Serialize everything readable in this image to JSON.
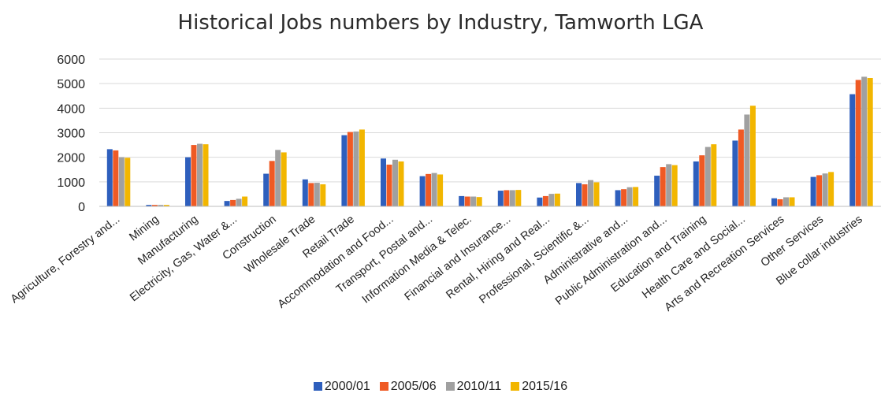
{
  "chart_data": {
    "type": "bar",
    "title": "Historical Jobs numbers by Industry, Tamworth LGA",
    "categories": [
      "Agriculture, Forestry and...",
      "Mining",
      "Manufacturing",
      "Electricity, Gas, Water &...",
      "Construction",
      "Wholesale Trade",
      "Retail Trade",
      "Accommodation and Food...",
      "Transport, Postal and...",
      "Information Media & Telec.",
      "Financial and Insurance...",
      "Rental, Hiring and Real...",
      "Professional, Scientific &...",
      "Administrative and...",
      "Public Administration and...",
      "Education and Training",
      "Health Care and Social...",
      "Arts and Recreation Services",
      "Other Services",
      "Blue collar industries"
    ],
    "series": [
      {
        "name": "2000/01",
        "color": "#2e5fbd",
        "values": [
          2330,
          60,
          2000,
          220,
          1330,
          1100,
          2900,
          1950,
          1230,
          420,
          640,
          360,
          950,
          660,
          1250,
          1830,
          2680,
          330,
          1200,
          4570
        ]
      },
      {
        "name": "2005/06",
        "color": "#ef5a24",
        "values": [
          2280,
          60,
          2500,
          260,
          1850,
          950,
          3030,
          1700,
          1320,
          400,
          660,
          420,
          900,
          700,
          1600,
          2080,
          3130,
          290,
          1270,
          5150
        ]
      },
      {
        "name": "2010/11",
        "color": "#a0a0a0",
        "values": [
          2000,
          60,
          2550,
          310,
          2300,
          960,
          3050,
          1900,
          1360,
          400,
          660,
          510,
          1070,
          780,
          1720,
          2420,
          3740,
          370,
          1340,
          5280
        ]
      },
      {
        "name": "2015/16",
        "color": "#f2b600",
        "values": [
          1980,
          60,
          2530,
          400,
          2200,
          900,
          3130,
          1830,
          1300,
          380,
          670,
          520,
          980,
          790,
          1680,
          2530,
          4100,
          370,
          1400,
          5230
        ]
      }
    ],
    "xlabel": "",
    "ylabel": "",
    "ylim": [
      0,
      6000
    ],
    "yticks": [
      "0",
      "1000",
      "2000",
      "3000",
      "4000",
      "5000",
      "6000"
    ],
    "grid": true,
    "legend_position": "bottom"
  }
}
